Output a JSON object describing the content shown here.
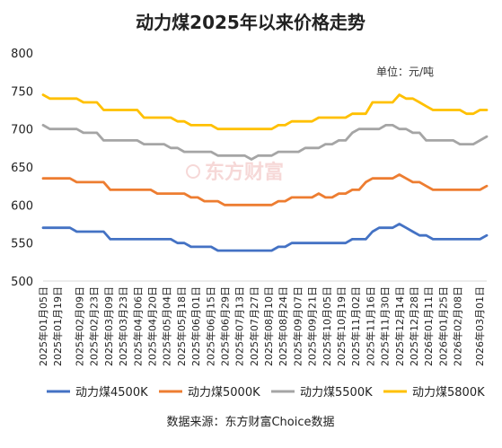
{
  "chart_data": {
    "type": "line",
    "title": "动力煤2025年以来价格走势",
    "unit_label": "单位：元/吨",
    "watermark": "东方财富",
    "source": "数据来源：东方财富Choice数据",
    "xlabel": "",
    "ylabel": "",
    "ylim": [
      500,
      800
    ],
    "yticks": [
      500,
      550,
      600,
      650,
      700,
      750,
      800
    ],
    "grid": false,
    "legend_position": "bottom",
    "tick_labels": [
      "2025年01月05日",
      "2025年01月19日",
      "2025年02月09日",
      "2025年02月23日",
      "2025年03月09日",
      "2025年03月23日",
      "2025年04月06日",
      "2025年04月20日",
      "2025年05月04日",
      "2025年05月18日",
      "2025年06月01日",
      "2025年06月15日",
      "2025年06月29日",
      "2025年07月13日",
      "2025年07月27日",
      "2025年08月10日",
      "2025年08月24日",
      "2025年09月07日",
      "2025年09月21日",
      "2025年10月05日",
      "2025年10月19日",
      "2025年11月02日",
      "2025年11月16日",
      "2025年11月30日",
      "2025年12月14日",
      "2025年12月28日",
      "2026年01月11日",
      "2026年01月25日",
      "2026年02月08日",
      "2026年03月01日"
    ],
    "x_start": "2025-01-05",
    "x_end": "2026-03-08",
    "series": [
      {
        "name": "动力煤4500K",
        "color": "#4472c4",
        "values": [
          570,
          570,
          570,
          570,
          570,
          565,
          565,
          565,
          565,
          565,
          555,
          555,
          555,
          555,
          555,
          555,
          555,
          555,
          555,
          555,
          550,
          550,
          545,
          545,
          545,
          545,
          540,
          540,
          540,
          540,
          540,
          540,
          540,
          540,
          540,
          545,
          545,
          550,
          550,
          550,
          550,
          550,
          550,
          550,
          550,
          550,
          555,
          555,
          555,
          565,
          570,
          570,
          570,
          575,
          570,
          565,
          560,
          560,
          555,
          555,
          555,
          555,
          555,
          555,
          555,
          555,
          560
        ]
      },
      {
        "name": "动力煤5000K",
        "color": "#ed7d31",
        "values": [
          635,
          635,
          635,
          635,
          635,
          630,
          630,
          630,
          630,
          630,
          620,
          620,
          620,
          620,
          620,
          620,
          620,
          615,
          615,
          615,
          615,
          615,
          610,
          610,
          605,
          605,
          605,
          600,
          600,
          600,
          600,
          600,
          600,
          600,
          600,
          605,
          605,
          610,
          610,
          610,
          610,
          615,
          610,
          610,
          615,
          615,
          620,
          620,
          630,
          635,
          635,
          635,
          635,
          640,
          635,
          630,
          630,
          625,
          620,
          620,
          620,
          620,
          620,
          620,
          620,
          620,
          625
        ]
      },
      {
        "name": "动力煤5500K",
        "color": "#a5a5a5",
        "values": [
          705,
          700,
          700,
          700,
          700,
          700,
          695,
          695,
          695,
          685,
          685,
          685,
          685,
          685,
          685,
          680,
          680,
          680,
          680,
          675,
          675,
          670,
          670,
          670,
          670,
          670,
          665,
          665,
          665,
          665,
          665,
          660,
          665,
          665,
          665,
          670,
          670,
          670,
          670,
          675,
          675,
          675,
          680,
          680,
          685,
          685,
          695,
          700,
          700,
          700,
          700,
          705,
          705,
          700,
          700,
          695,
          695,
          685,
          685,
          685,
          685,
          685,
          680,
          680,
          680,
          685,
          690
        ]
      },
      {
        "name": "动力煤5800K",
        "color": "#ffc000",
        "values": [
          745,
          740,
          740,
          740,
          740,
          740,
          735,
          735,
          735,
          725,
          725,
          725,
          725,
          725,
          725,
          715,
          715,
          715,
          715,
          715,
          710,
          710,
          705,
          705,
          705,
          705,
          700,
          700,
          700,
          700,
          700,
          700,
          700,
          700,
          700,
          705,
          705,
          710,
          710,
          710,
          710,
          715,
          715,
          715,
          715,
          715,
          720,
          720,
          720,
          735,
          735,
          735,
          735,
          745,
          740,
          740,
          735,
          730,
          725,
          725,
          725,
          725,
          725,
          720,
          720,
          725,
          725
        ]
      }
    ]
  }
}
